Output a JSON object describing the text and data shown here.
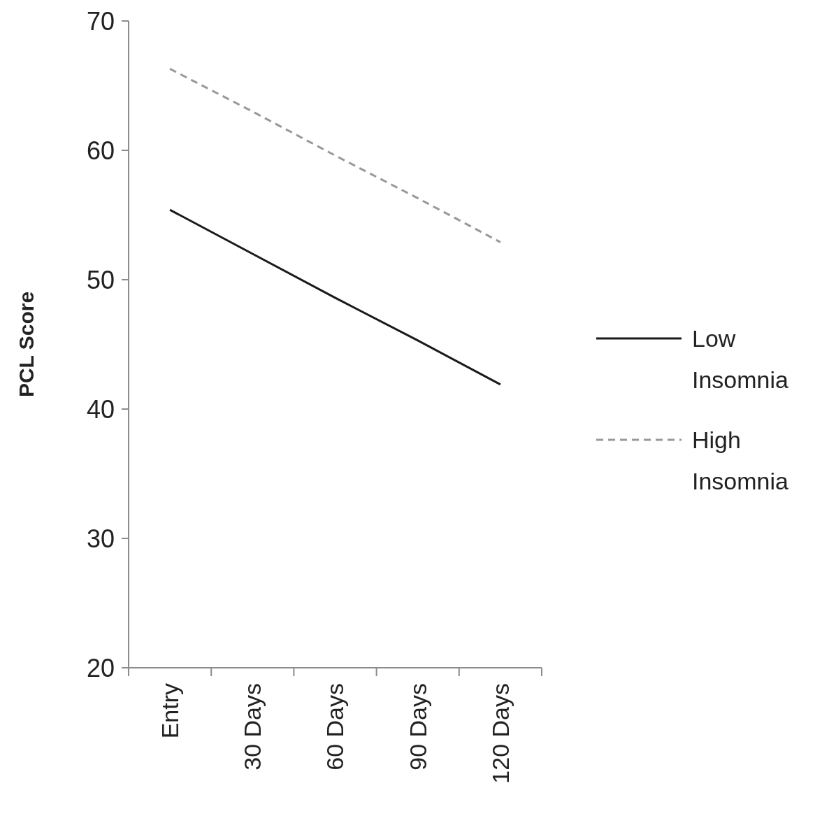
{
  "chart_data": {
    "type": "line",
    "ylabel": "PCL Score",
    "categories": [
      "Entry",
      "30 Days",
      "60 Days",
      "90 Days",
      "120 Days"
    ],
    "series": [
      {
        "name": "Low Insomnia",
        "color": "#1a1a1a",
        "line_style": "solid",
        "values": [
          55.4,
          52.0,
          48.6,
          45.3,
          41.9
        ]
      },
      {
        "name": "High Insomnia",
        "color": "#999999",
        "line_style": "dashed",
        "values": [
          66.3,
          63.0,
          59.6,
          56.3,
          52.9
        ]
      }
    ],
    "ylim": [
      20,
      70
    ],
    "yticks": [
      20,
      30,
      40,
      50,
      60,
      70
    ],
    "grid": false,
    "legend": "right",
    "marker": "none"
  }
}
